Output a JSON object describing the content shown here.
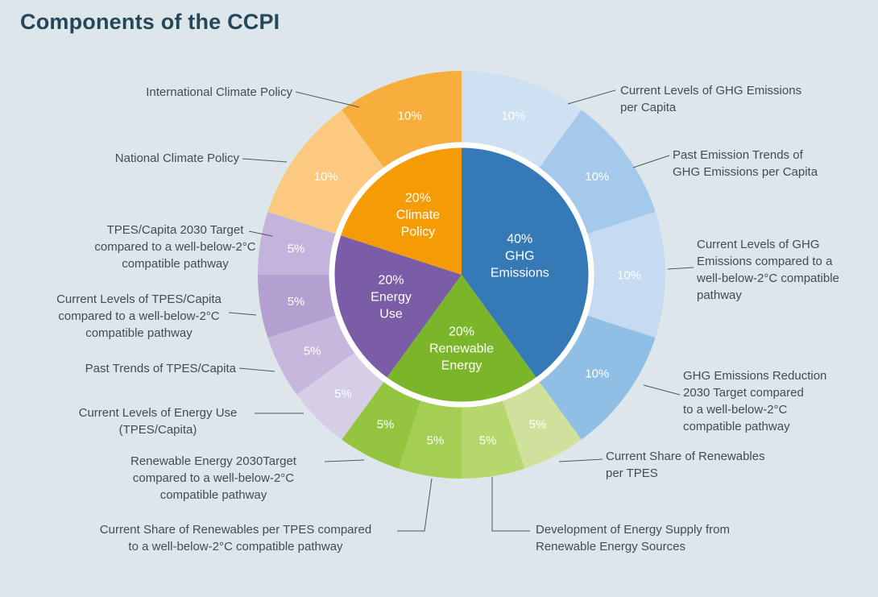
{
  "title": "Components of the CCPI",
  "colors": {
    "background": "#dde6ea",
    "title": "#25475a",
    "label_text": "#414c54",
    "leader_line": "#4d5761",
    "ring_separator": "#ffffff",
    "percent_text": "#ffffff"
  },
  "chart_data": {
    "type": "pie",
    "subtype": "sunburst-donut",
    "title": "Components of the CCPI",
    "units": "percent weighting",
    "start_angle_deg": 0,
    "direction": "clockwise",
    "inner": [
      {
        "name": "GHG Emissions",
        "value": 40,
        "color": "#3679b7",
        "label_lines": [
          "40%",
          "GHG",
          "Emissions"
        ]
      },
      {
        "name": "Renewable Energy",
        "value": 20,
        "color": "#7bb62a",
        "label_lines": [
          "20%",
          "Renewable",
          "Energy"
        ]
      },
      {
        "name": "Energy Use",
        "value": 20,
        "color": "#7b5ca6",
        "label_lines": [
          "20%",
          "Energy",
          "Use"
        ]
      },
      {
        "name": "Climate Policy",
        "value": 20,
        "color": "#f49b05",
        "label_lines": [
          "20%",
          "Climate",
          "Policy"
        ]
      }
    ],
    "outer": [
      {
        "parent": "GHG Emissions",
        "name": "Current Levels of GHG Emissions per Capita",
        "value": 10,
        "color": "#cfe0f3",
        "label_lines": [
          "Current Levels of GHG Emissions",
          "per Capita"
        ]
      },
      {
        "parent": "GHG Emissions",
        "name": "Past Emission Trends of GHG Emissions per Capita",
        "value": 10,
        "color": "#a5c9ea",
        "label_lines": [
          "Past Emission Trends of",
          "GHG Emissions per Capita"
        ]
      },
      {
        "parent": "GHG Emissions",
        "name": "Current Levels of GHG Emissions compared to a well-below-2°C compatible pathway",
        "value": 10,
        "color": "#c6dbf1",
        "label_lines": [
          "Current Levels of GHG",
          "Emissions compared to a",
          "well-below-2°C compatible",
          "pathway"
        ]
      },
      {
        "parent": "GHG Emissions",
        "name": "GHG Emissions Reduction 2030 Target compared to a well-below-2°C compatible pathway",
        "value": 10,
        "color": "#90bfe5",
        "label_lines": [
          "GHG Emissions Reduction",
          "2030 Target compared",
          "to a well-below-2°C",
          "compatible pathway"
        ]
      },
      {
        "parent": "Renewable Energy",
        "name": "Current Share of Renewables per TPES",
        "value": 5,
        "color": "#cfe19b",
        "label_lines": [
          "Current Share of Renewables",
          "per TPES"
        ]
      },
      {
        "parent": "Renewable Energy",
        "name": "Development of Energy Supply from Renewable Energy Sources",
        "value": 5,
        "color": "#b5d76d",
        "label_lines": [
          "Development of Energy Supply from",
          "Renewable Energy Sources"
        ]
      },
      {
        "parent": "Renewable Energy",
        "name": "Current Share of Renewables per TPES compared to a well-below-2°C compatible pathway",
        "value": 5,
        "color": "#a4ce54",
        "label_lines": [
          "Current Share of Renewables per TPES compared",
          "to a well-below-2°C compatible pathway"
        ]
      },
      {
        "parent": "Renewable Energy",
        "name": "Renewable Energy 2030 Target compared to a well-below-2°C compatible pathway",
        "value": 5,
        "color": "#94c53f",
        "label_lines": [
          "Renewable Energy 2030Target",
          "compared to a well-below-2°C",
          "compatible pathway"
        ]
      },
      {
        "parent": "Energy Use",
        "name": "Current Levels of Energy Use (TPES/Capita)",
        "value": 5,
        "color": "#d6cde7",
        "label_lines": [
          "Current Levels of Energy Use",
          "(TPES/Capita)"
        ]
      },
      {
        "parent": "Energy Use",
        "name": "Past Trends of TPES/Capita",
        "value": 5,
        "color": "#c6b7dd",
        "label_lines": [
          "Past Trends of TPES/Capita"
        ]
      },
      {
        "parent": "Energy Use",
        "name": "Current Levels of TPES/Capita compared to a well-below-2°C compatible pathway",
        "value": 5,
        "color": "#b3a0d0",
        "label_lines": [
          "Current Levels of TPES/Capita",
          "compared to a well-below-2°C",
          "compatible pathway"
        ]
      },
      {
        "parent": "Energy Use",
        "name": "TPES/Capita 2030 Target compared to a well-below-2°C compatible pathway",
        "value": 5,
        "color": "#c4b3db",
        "label_lines": [
          "TPES/Capita 2030 Target",
          "compared to a well-below-2°C",
          "compatible pathway"
        ]
      },
      {
        "parent": "Climate Policy",
        "name": "National Climate Policy",
        "value": 10,
        "color": "#fbca80",
        "label_lines": [
          "National Climate Policy"
        ]
      },
      {
        "parent": "Climate Policy",
        "name": "International Climate Policy",
        "value": 10,
        "color": "#f7ae3c",
        "label_lines": [
          "International Climate Policy"
        ]
      }
    ]
  }
}
